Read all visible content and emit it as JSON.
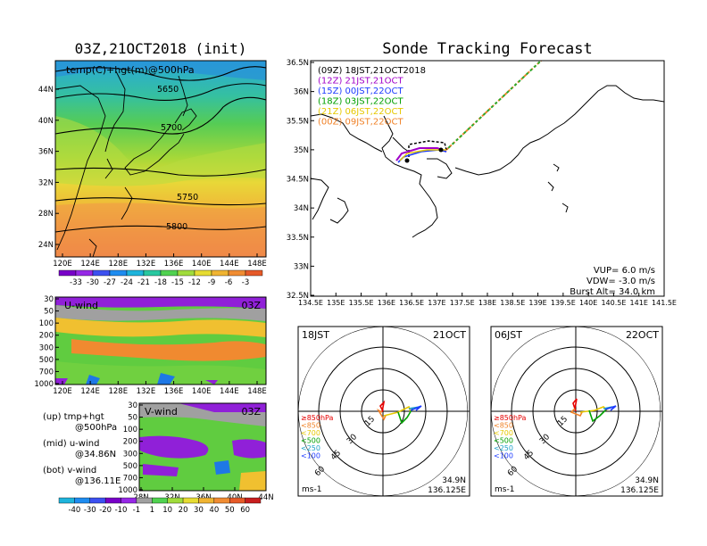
{
  "titles": {
    "left": "03Z,21OCT2018 (init)",
    "right": "Sonde Tracking Forecast"
  },
  "map_panel": {
    "label": "temp(C)+hgt(m)@500hPa",
    "lat_ticks": [
      "44N",
      "40N",
      "36N",
      "32N",
      "28N",
      "24N"
    ],
    "lon_ticks": [
      "120E",
      "124E",
      "128E",
      "132E",
      "136E",
      "140E",
      "144E",
      "148E"
    ],
    "contour_labels": [
      "5650",
      "5700",
      "5750",
      "5800"
    ],
    "colorbar_labels": [
      "-33",
      "-30",
      "-27",
      "-24",
      "-21",
      "-18",
      "-15",
      "-12",
      "-9",
      "-6",
      "-3"
    ]
  },
  "uwind_panel": {
    "label": "U-wind",
    "time": "03Z",
    "p_ticks": [
      "30",
      "50",
      "100",
      "200",
      "300",
      "500",
      "700",
      "1000"
    ],
    "lon_ticks": [
      "120E",
      "124E",
      "128E",
      "132E",
      "136E",
      "140E",
      "144E",
      "148E"
    ]
  },
  "vwind_panel": {
    "label": "V-wind",
    "time": "03Z",
    "p_ticks": [
      "30",
      "50",
      "100",
      "200",
      "300",
      "500",
      "700",
      "1000"
    ],
    "lat_ticks": [
      "28N",
      "32N",
      "36N",
      "40N",
      "44N"
    ]
  },
  "notes": {
    "up1": "(up) tmp+hgt",
    "up2": "@500hPa",
    "mid1": "(mid) u-wind",
    "mid2": "@34.86N",
    "bot1": "(bot) v-wind",
    "bot2": "@136.11E"
  },
  "wind_colorbar_labels": [
    "-40",
    "-30",
    "-20",
    "-10",
    "-1",
    "1",
    "10",
    "20",
    "30",
    "40",
    "50",
    "60"
  ],
  "track_panel": {
    "legend": [
      {
        "text": "(09Z)  18JST,21OCT2018",
        "color": "#000000"
      },
      {
        "text": "(12Z)  21JST,21OCT",
        "color": "#a000c8"
      },
      {
        "text": "(15Z)  00JST,22OCT",
        "color": "#1e3cff"
      },
      {
        "text": "(18Z)  03JST,22OCT",
        "color": "#00a000"
      },
      {
        "text": "(21Z)  06JST,22OCT",
        "color": "#e6c800"
      },
      {
        "text": "(00Z)  09JST,22OCT",
        "color": "#f08228"
      }
    ],
    "lat_ticks": [
      "36.5N",
      "36N",
      "35.5N",
      "35N",
      "34.5N",
      "34N",
      "33.5N",
      "33N",
      "32.5N"
    ],
    "lon_ticks": [
      "134.5E",
      "135E",
      "135.5E",
      "136E",
      "136.5E",
      "137E",
      "137.5E",
      "138E",
      "138.5E",
      "139E",
      "139.5E",
      "140E",
      "140.5E",
      "141E",
      "141.5E"
    ],
    "params": [
      "VUP=  6.0 m/s",
      "VDW= -3.0 m/s",
      "Burst Alt= 34.0 km"
    ]
  },
  "polar_left": {
    "time": "18JST",
    "date": "21OCT",
    "ring_labels": [
      "15",
      "30",
      "45",
      "60"
    ],
    "levels": [
      {
        "text": "≥850hPa",
        "color": "#e60000"
      },
      {
        "text": "<850",
        "color": "#f08228"
      },
      {
        "text": "<700",
        "color": "#e6c800"
      },
      {
        "text": "<500",
        "color": "#00a000"
      },
      {
        "text": "<250",
        "color": "#1ea0c8"
      },
      {
        "text": "<100",
        "color": "#1e3cff"
      }
    ],
    "units": "ms-1",
    "lat": "34.9N",
    "lon": "136.125E"
  },
  "polar_right": {
    "time": "06JST",
    "date": "22OCT",
    "ring_labels": [
      "15",
      "30",
      "45",
      "60"
    ],
    "levels": [
      {
        "text": "≥850hPa",
        "color": "#e60000"
      },
      {
        "text": "<850",
        "color": "#f08228"
      },
      {
        "text": "<700",
        "color": "#e6c800"
      },
      {
        "text": "<500",
        "color": "#00a000"
      },
      {
        "text": "<250",
        "color": "#1ea0c8"
      },
      {
        "text": "<100",
        "color": "#1e3cff"
      }
    ],
    "units": "ms-1",
    "lat": "34.9N",
    "lon": "136.125E"
  }
}
